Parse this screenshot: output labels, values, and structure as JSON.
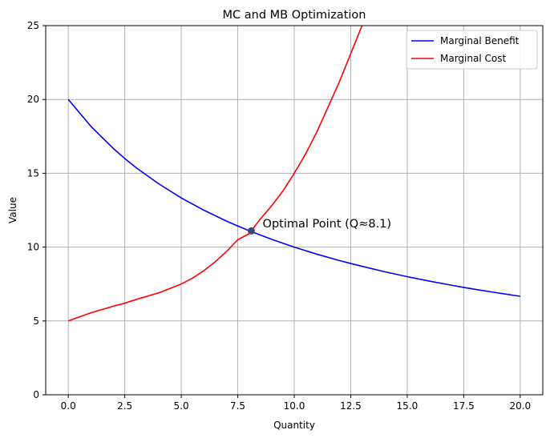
{
  "chart_data": {
    "type": "line",
    "title": "MC and MB Optimization",
    "xlabel": "Quantity",
    "ylabel": "Value",
    "xlim": [
      -1,
      21
    ],
    "ylim": [
      0,
      25
    ],
    "x_ticks": [
      0.0,
      2.5,
      5.0,
      7.5,
      10.0,
      12.5,
      15.0,
      17.5,
      20.0
    ],
    "x_tick_labels": [
      "0.0",
      "2.5",
      "5.0",
      "7.5",
      "10.0",
      "12.5",
      "15.0",
      "17.5",
      "20.0"
    ],
    "y_ticks": [
      0,
      5,
      10,
      15,
      20,
      25
    ],
    "y_tick_labels": [
      "0",
      "5",
      "10",
      "15",
      "20",
      "25"
    ],
    "grid": true,
    "legend_position": "top-right",
    "series": [
      {
        "name": "Marginal Benefit",
        "color": "#0000ff",
        "x": [
          0,
          1,
          2,
          2.5,
          3,
          4,
          5,
          6,
          7,
          7.5,
          8,
          9,
          10,
          11,
          12,
          12.5,
          13,
          14,
          15,
          16,
          17,
          17.5,
          18,
          19,
          20
        ],
        "values": [
          20.0,
          18.18,
          16.67,
          16.0,
          15.38,
          14.29,
          13.33,
          12.5,
          11.76,
          11.43,
          11.11,
          10.53,
          10.0,
          9.52,
          9.09,
          8.89,
          8.7,
          8.33,
          8.0,
          7.69,
          7.41,
          7.27,
          7.14,
          6.9,
          6.67
        ]
      },
      {
        "name": "Marginal Cost",
        "color": "#ff0000",
        "x": [
          0,
          1,
          2,
          2.5,
          3,
          4,
          5,
          5.5,
          6,
          6.5,
          7,
          7.5,
          8,
          8.5,
          9,
          9.5,
          10,
          10.5,
          11,
          11.5,
          12,
          12.5,
          13
        ],
        "values": [
          5.0,
          5.55,
          6.0,
          6.2,
          6.45,
          6.9,
          7.5,
          7.9,
          8.4,
          9.0,
          9.7,
          10.5,
          10.9,
          11.9,
          12.8,
          13.8,
          15.0,
          16.3,
          17.8,
          19.5,
          21.2,
          23.1,
          25.0
        ]
      }
    ],
    "optimal_point": {
      "x": 8.1,
      "y": 11.1,
      "color": "#3b4a73"
    },
    "annotation": {
      "text": "Optimal Point (Q≈8.1)",
      "x": 8.6,
      "y": 11.6
    }
  }
}
